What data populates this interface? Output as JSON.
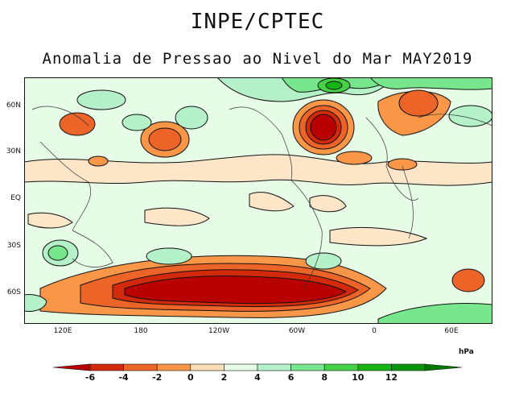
{
  "header": {
    "agency": "INPE/CPTEC",
    "subtitle": "Anomalia de Pressao ao Nivel do Mar MAY2019"
  },
  "axes": {
    "lat_labels": [
      "60N",
      "30N",
      "EQ",
      "30S",
      "60S"
    ],
    "lon_labels": [
      "120E",
      "180",
      "120W",
      "60W",
      "0",
      "60E"
    ]
  },
  "colorbar": {
    "units": "hPa",
    "ticks": [
      "-6",
      "-4",
      "-2",
      "0",
      "2",
      "4",
      "6",
      "8",
      "10",
      "12"
    ],
    "colors": [
      "#b80000",
      "#d22a0a",
      "#ec6428",
      "#fa9648",
      "#fcdcb4",
      "#e6fce6",
      "#b4f0c8",
      "#78e68c",
      "#46d246",
      "#14b414",
      "#0a960a",
      "#007800"
    ]
  },
  "palette": {
    "background_anomaly": "#e6fce6",
    "weak_positive": "#fde5c8",
    "contour": "#111111",
    "coast": "#333333"
  }
}
